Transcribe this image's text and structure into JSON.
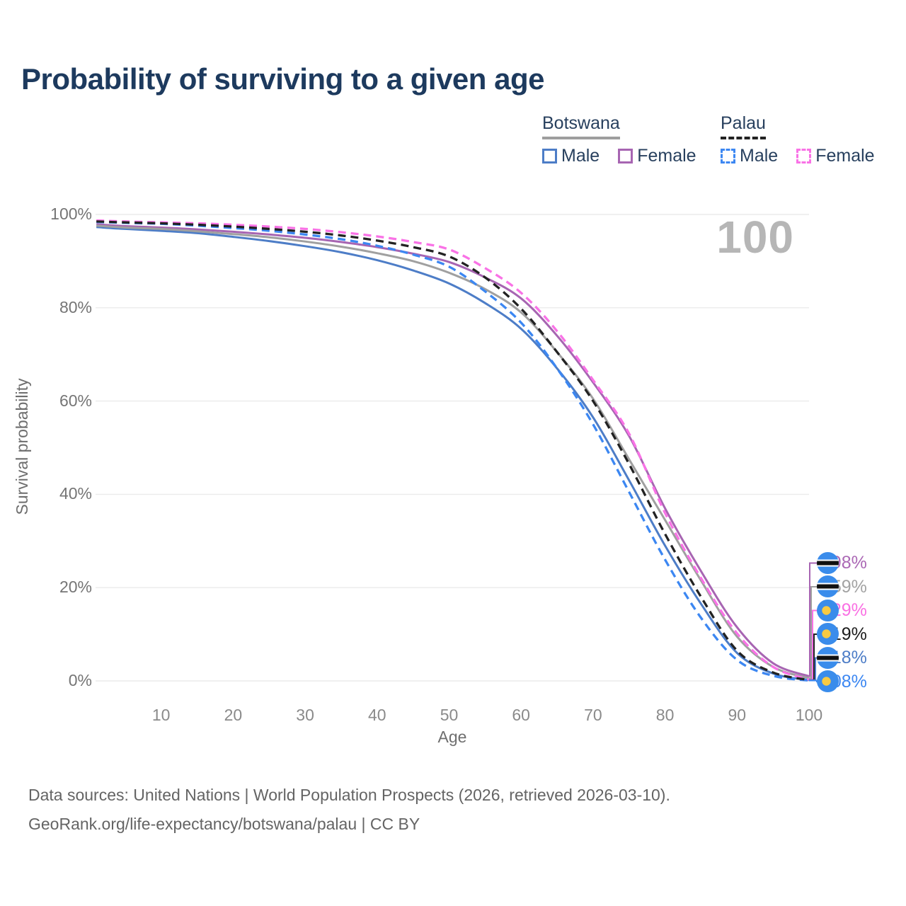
{
  "title": "Probability of surviving to a given age",
  "watermark_age": "100",
  "legend": {
    "groups": [
      {
        "label": "Botswana",
        "line_style": "solid",
        "line_color": "#9e9e9e",
        "items": [
          {
            "label": "Male",
            "color": "#4d7dc7",
            "line_style": "solid"
          },
          {
            "label": "Female",
            "color": "#a765b2",
            "line_style": "solid"
          }
        ]
      },
      {
        "label": "Palau",
        "line_style": "dashed",
        "line_color": "#222222",
        "items": [
          {
            "label": "Male",
            "color": "#3c87f2",
            "line_style": "dashed"
          },
          {
            "label": "Female",
            "color": "#f972e6",
            "line_style": "dashed"
          }
        ]
      }
    ]
  },
  "chart_data": {
    "type": "line",
    "title": "Probability of surviving to a given age",
    "xlabel": "Age",
    "ylabel": "Survival probability",
    "xlim": [
      0,
      100
    ],
    "ylim": [
      0,
      100
    ],
    "grid": true,
    "legend_position": "top-right",
    "x_ticks": [
      10,
      20,
      30,
      40,
      50,
      60,
      70,
      80,
      90,
      100
    ],
    "y_ticks": [
      {
        "value": 0,
        "label": "0%"
      },
      {
        "value": 20,
        "label": "20%"
      },
      {
        "value": 40,
        "label": "40%"
      },
      {
        "value": 60,
        "label": "60%"
      },
      {
        "value": 80,
        "label": "80%"
      },
      {
        "value": 100,
        "label": "100%"
      }
    ],
    "x": [
      1,
      5,
      10,
      15,
      20,
      25,
      30,
      35,
      40,
      45,
      50,
      55,
      60,
      65,
      70,
      75,
      80,
      85,
      90,
      95,
      100
    ],
    "series": [
      {
        "name": "Botswana Male",
        "country": "Botswana",
        "sex": "Male",
        "line_style": "solid",
        "color": "#4d7dc7",
        "values": [
          97.3,
          96.9,
          96.5,
          96.0,
          95.2,
          94.3,
          93.2,
          91.9,
          90.2,
          88.0,
          85.2,
          81.0,
          75.5,
          67.0,
          56.5,
          43.0,
          29.0,
          16.5,
          6.0,
          1.6,
          0.18
        ],
        "end_value_label": "0.18%"
      },
      {
        "name": "Botswana Female",
        "country": "Botswana",
        "sex": "Female",
        "line_style": "solid",
        "color": "#a765b2",
        "values": [
          97.9,
          97.5,
          97.2,
          96.8,
          96.3,
          95.7,
          95.0,
          94.1,
          93.0,
          91.6,
          89.8,
          86.5,
          82.0,
          74.0,
          64.0,
          52.5,
          37.0,
          23.5,
          11.5,
          3.8,
          0.98
        ],
        "end_value_label": "0.98%"
      },
      {
        "name": "Botswana",
        "country": "Botswana",
        "sex": "Both",
        "line_style": "solid",
        "color": "#a0a0a0",
        "values": [
          97.6,
          97.2,
          96.9,
          96.4,
          95.8,
          95.1,
          94.2,
          93.1,
          91.7,
          90.0,
          87.5,
          84.0,
          79.0,
          70.5,
          60.5,
          47.5,
          34.5,
          21.5,
          9.5,
          3.0,
          0.59
        ],
        "end_value_label": "0.59%"
      },
      {
        "name": "Palau Male",
        "country": "Palau",
        "sex": "Male",
        "line_style": "dashed",
        "color": "#3c87f2",
        "values": [
          98.4,
          98.2,
          98.0,
          97.6,
          97.1,
          96.5,
          95.7,
          94.7,
          93.3,
          91.4,
          88.8,
          83.5,
          76.8,
          67.0,
          55.0,
          40.5,
          26.0,
          13.5,
          4.5,
          1.1,
          0.08
        ],
        "end_value_label": "0.08%"
      },
      {
        "name": "Palau Female",
        "country": "Palau",
        "sex": "Female",
        "line_style": "dashed",
        "color": "#f972e6",
        "values": [
          98.7,
          98.5,
          98.3,
          98.1,
          97.8,
          97.4,
          96.9,
          96.2,
          95.3,
          94.1,
          92.5,
          88.5,
          83.2,
          75.0,
          64.5,
          53.0,
          36.0,
          22.0,
          10.2,
          3.0,
          0.29
        ],
        "end_value_label": "0.29%"
      },
      {
        "name": "Palau",
        "country": "Palau",
        "sex": "Both",
        "line_style": "dashed",
        "color": "#222222",
        "values": [
          98.5,
          98.3,
          98.1,
          97.8,
          97.4,
          96.9,
          96.3,
          95.5,
          94.4,
          93.0,
          91.0,
          86.5,
          79.8,
          70.5,
          60.0,
          46.5,
          31.5,
          18.0,
          6.5,
          1.8,
          0.19
        ],
        "end_value_label": "0.19%"
      }
    ],
    "end_labels": [
      {
        "text": "0.98%",
        "series": "Botswana Female",
        "flag": "botswana",
        "color": "#ab68b5"
      },
      {
        "text": "0.59%",
        "series": "Botswana",
        "flag": "botswana",
        "color": "#a3a3a3"
      },
      {
        "text": "0.29%",
        "series": "Palau Female",
        "flag": "palau",
        "color": "#fa70e3"
      },
      {
        "text": "0.19%",
        "series": "Palau",
        "flag": "palau",
        "color": "#1d1d1d"
      },
      {
        "text": "0.18%",
        "series": "Botswana Male",
        "flag": "botswana",
        "color": "#4d7dc7"
      },
      {
        "text": "0.08%",
        "series": "Palau Male",
        "flag": "palau",
        "color": "#3c87f2"
      }
    ]
  },
  "flag_colors": {
    "blue": "#3a8ceb",
    "yellow": "#f8ca43",
    "black": "#111111",
    "white": "#ffffff"
  },
  "grid_color": "#ebebeb",
  "footer": {
    "line1": "Data sources: United Nations | World Population Prospects (2026, retrieved 2026-03-10).",
    "line2": "GeoRank.org/life-expectancy/botswana/palau | CC BY"
  }
}
